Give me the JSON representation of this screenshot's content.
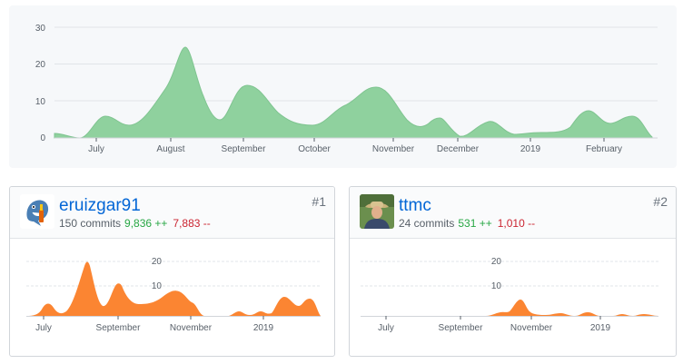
{
  "main_chart": {
    "y_ticks": [
      "0",
      "10",
      "20",
      "30"
    ],
    "y_max": 30,
    "x_labels": [
      "July",
      "August",
      "September",
      "October",
      "November",
      "December",
      "2019",
      "February"
    ],
    "fill": "#8fd19e",
    "stroke": "#7fc490"
  },
  "contributors": [
    {
      "name": "eruizgar91",
      "commits": "150 commits",
      "additions": "9,836 ++",
      "deletions": "7,883 --",
      "rank": "#1",
      "avatar": "shark-avatar",
      "y_ticks": [
        "10",
        "20"
      ],
      "x_labels": [
        "July",
        "September",
        "November",
        "2019"
      ],
      "fill": "#fb8532"
    },
    {
      "name": "ttmc",
      "commits": "24 commits",
      "additions": "531 ++",
      "deletions": "1,010 --",
      "rank": "#2",
      "avatar": "photo-avatar",
      "y_ticks": [
        "10",
        "20"
      ],
      "x_labels": [
        "July",
        "September",
        "November",
        "2019"
      ],
      "fill": "#fb8532"
    }
  ]
}
